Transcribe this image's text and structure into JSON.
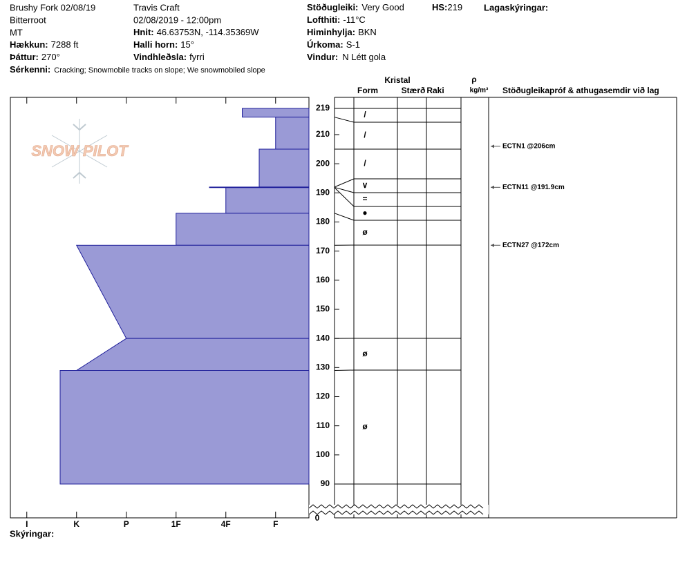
{
  "header": {
    "location": "Brushy Fork 02/08/19",
    "range": "Bitterroot",
    "state": "MT",
    "elevation": {
      "label": "Hækkun:",
      "value": "7288 ft"
    },
    "aspect": {
      "label": "Þáttur:",
      "value": "270°"
    },
    "features": {
      "label": "Sérkenni:",
      "value": "Cracking;  Snowmobile tracks on slope; We snowmobiled slope"
    },
    "observer": "Travis  Craft",
    "datetime": "02/08/2019 - 12:00pm",
    "coords": {
      "label": "Hnit:",
      "value": "46.63753N, -114.35369W"
    },
    "slope": {
      "label": "Halli horn:",
      "value": "15°"
    },
    "wind_loading": {
      "label": "Vindhleðsla:",
      "value": "fyrri"
    },
    "stability": {
      "label": "Stöðugleiki:",
      "value": "Very Good"
    },
    "hs": {
      "label": "HS:",
      "value": "219"
    },
    "air_temp": {
      "label": "Lofthiti:",
      "value": "-11°C"
    },
    "sky": {
      "label": "Himinhylja:",
      "value": "BKN"
    },
    "precip": {
      "label": "Úrkoma:",
      "value": "S-1"
    },
    "wind": {
      "label": "Vindur:",
      "value": "N Létt gola"
    },
    "layer_notes": "Lagaskýringar:"
  },
  "logo": "SNOW PILOT",
  "columns": {
    "crystal": "Kristal",
    "form": "Form",
    "size": "Stærð",
    "moisture": "Raki",
    "density": "ρ",
    "density_unit": "kg/m³",
    "tests": "Stöðugleikapróf & athugasemdir við lag"
  },
  "hardness_axis": {
    "lim": [
      6.33,
      0.33
    ],
    "ticks": [
      {
        "value": 6,
        "label": "I"
      },
      {
        "value": 5,
        "label": "K"
      },
      {
        "value": 4,
        "label": "P"
      },
      {
        "value": 3,
        "label": "1F"
      },
      {
        "value": 2,
        "label": "4F"
      },
      {
        "value": 1,
        "label": "F"
      }
    ]
  },
  "height_axis": {
    "lim": [
      90,
      222.8
    ],
    "ticks": [
      90,
      100,
      110,
      120,
      130,
      140,
      150,
      160,
      170,
      180,
      190,
      200,
      210,
      219
    ],
    "origin_label": 0
  },
  "layers": [
    {
      "top": 219,
      "bottom": 216,
      "hardness_top": 1.67,
      "hardness_bottom": 1.67,
      "form": "/"
    },
    {
      "top": 216,
      "bottom": 205,
      "hardness_top": 1,
      "hardness_bottom": 1,
      "form": "/"
    },
    {
      "top": 205,
      "bottom": 192,
      "hardness_top": 1.33,
      "hardness_bottom": 1.33,
      "form": "/"
    },
    {
      "top": 192,
      "bottom": 191.9,
      "hardness_top": 2.33,
      "hardness_bottom": 2.33,
      "form": "∨"
    },
    {
      "top": 191.9,
      "bottom": 191.8,
      "hardness_top": 2.33,
      "hardness_bottom": 2.33,
      "form": "="
    },
    {
      "top": 191.8,
      "bottom": 183,
      "hardness_top": 2,
      "hardness_bottom": 2,
      "form": "●"
    },
    {
      "top": 183,
      "bottom": 172,
      "hardness_top": 3,
      "hardness_bottom": 3,
      "form": "ø"
    },
    {
      "top": 172,
      "bottom": 140,
      "hardness_top": 5,
      "hardness_bottom": 4
    },
    {
      "top": 140,
      "bottom": 129,
      "hardness_top": 4,
      "hardness_bottom": 5,
      "form": "ø"
    },
    {
      "top": 129,
      "bottom": 90,
      "hardness_top": 5.33,
      "hardness_bottom": 5.33,
      "form": "ø"
    }
  ],
  "tests": [
    {
      "label": "ECTN1 @206cm",
      "height": 206
    },
    {
      "label": "ECTN11 @191.9cm",
      "height": 191.9
    },
    {
      "label": "ECTN27 @172cm",
      "height": 172
    }
  ],
  "footer": "Skýringar:"
}
